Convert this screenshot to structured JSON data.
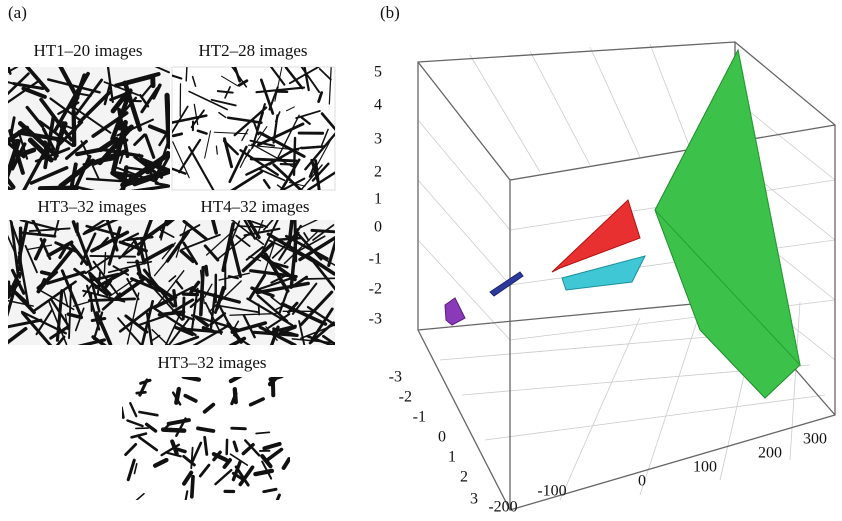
{
  "panel_a": {
    "label": "(a)",
    "captions": [
      "HT1–20 images",
      "HT2–28 images",
      "HT3–32 images",
      "HT4–32 images",
      "HT3–32 images"
    ]
  },
  "panel_b": {
    "label": "(b)",
    "z_ticks": [
      5,
      4,
      3,
      2,
      1,
      0,
      -1,
      -2,
      -3
    ],
    "y_ticks": [
      -3,
      -2,
      -1,
      0,
      1,
      2,
      3
    ],
    "x_ticks": [
      -200,
      -100,
      0,
      100,
      200,
      300
    ]
  }
}
